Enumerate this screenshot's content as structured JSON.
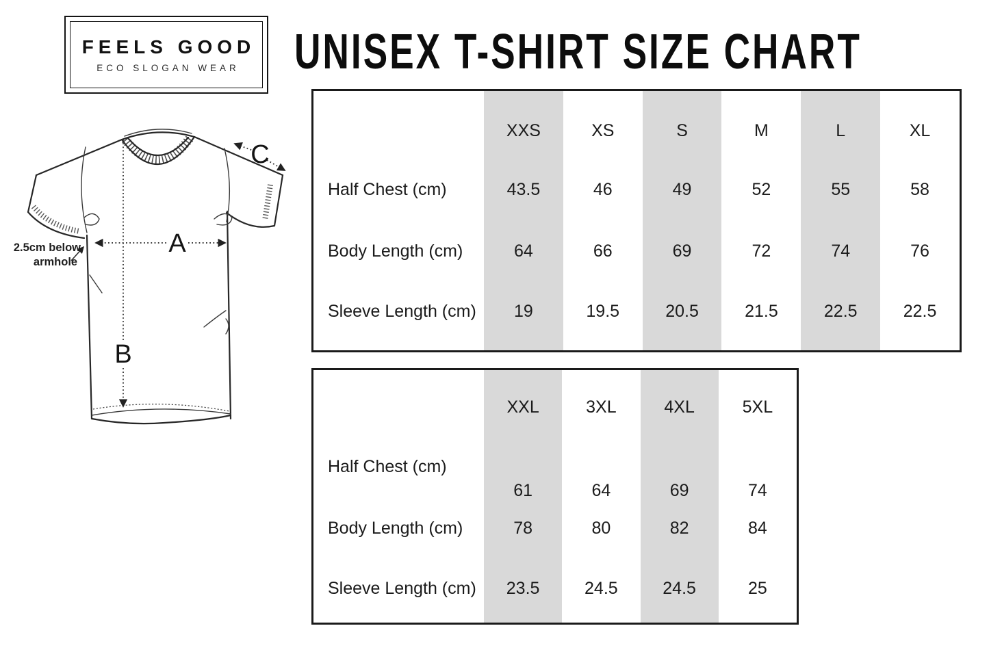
{
  "brand": {
    "name": "FEELS GOOD",
    "tagline": "ECO SLOGAN WEAR"
  },
  "page_title": "UNISEX T-SHIRT SIZE CHART",
  "diagram": {
    "label_a": "A",
    "label_b": "B",
    "label_c": "C",
    "note_line1": "2.5cm below",
    "note_line2": "armhole"
  },
  "tables": [
    {
      "name": "size-table-xxs-to-xl",
      "sizes": [
        "XXS",
        "XS",
        "S",
        "M",
        "L",
        "XL"
      ],
      "rows": [
        {
          "label": "Half Chest (cm)",
          "values": [
            "43.5",
            "46",
            "49",
            "52",
            "55",
            "58"
          ]
        },
        {
          "label": "Body Length (cm)",
          "values": [
            "64",
            "66",
            "69",
            "72",
            "74",
            "76"
          ]
        },
        {
          "label": "Sleeve Length (cm)",
          "values": [
            "19",
            "19.5",
            "20.5",
            "21.5",
            "22.5",
            "22.5"
          ]
        }
      ]
    },
    {
      "name": "size-table-xxl-to-5xl",
      "sizes": [
        "XXL",
        "3XL",
        "4XL",
        "5XL"
      ],
      "rows": [
        {
          "label": "Half Chest (cm)",
          "values": [
            "61",
            "64",
            "69",
            "74"
          ]
        },
        {
          "label": "Body Length (cm)",
          "values": [
            "78",
            "80",
            "82",
            "84"
          ]
        },
        {
          "label": "Sleeve Length (cm)",
          "values": [
            "23.5",
            "24.5",
            "24.5",
            "25"
          ]
        }
      ]
    }
  ],
  "colors": {
    "stripe": "#d9d9d9",
    "ink": "#1b1b1b",
    "border": "#1a1a1a"
  }
}
